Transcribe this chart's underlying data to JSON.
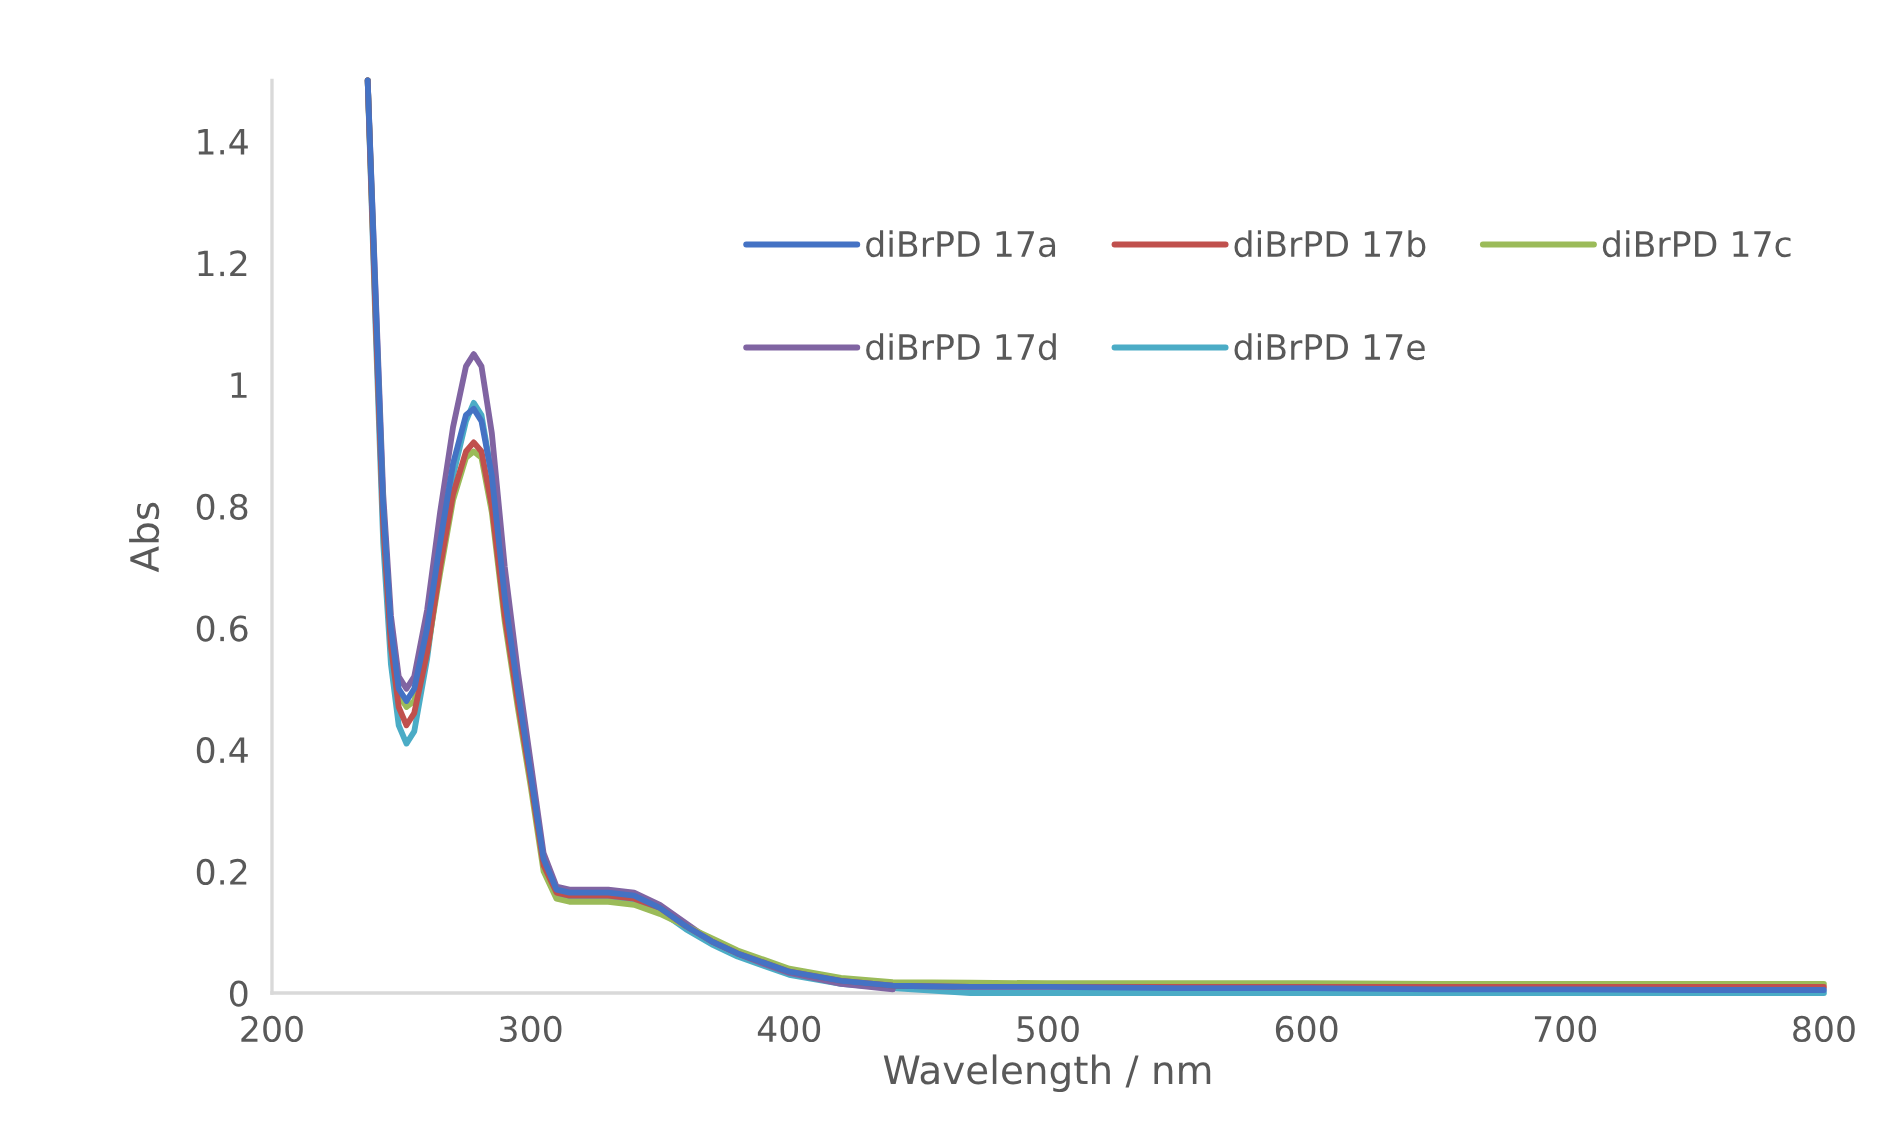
{
  "chart_data": {
    "type": "line",
    "xlabel": "Wavelength / nm",
    "ylabel": "Abs",
    "x": [
      237,
      240,
      243,
      246,
      249,
      252,
      255,
      260,
      265,
      270,
      275,
      278,
      281,
      285,
      290,
      295,
      300,
      305,
      310,
      315,
      320,
      330,
      340,
      350,
      360,
      370,
      380,
      390,
      400,
      420,
      440,
      470,
      500,
      550,
      600,
      650,
      700,
      750,
      800
    ],
    "series": [
      {
        "name": "diBrPD 17a",
        "color": "#4472c4",
        "values": [
          1.5,
          1.15,
          0.8,
          0.6,
          0.5,
          0.48,
          0.5,
          0.6,
          0.74,
          0.87,
          0.95,
          0.96,
          0.94,
          0.85,
          0.65,
          0.5,
          0.36,
          0.22,
          0.17,
          0.165,
          0.165,
          0.165,
          0.16,
          0.14,
          0.11,
          0.085,
          0.065,
          0.05,
          0.035,
          0.02,
          0.012,
          0.01,
          0.01,
          0.008,
          0.008,
          0.006,
          0.006,
          0.005,
          0.005
        ]
      },
      {
        "name": "diBrPD 17b",
        "color": "#c0504d",
        "values": [
          1.5,
          1.12,
          0.77,
          0.57,
          0.47,
          0.44,
          0.46,
          0.56,
          0.7,
          0.82,
          0.89,
          0.905,
          0.89,
          0.8,
          0.62,
          0.48,
          0.35,
          0.21,
          0.165,
          0.16,
          0.16,
          0.16,
          0.155,
          0.14,
          0.11,
          0.085,
          0.065,
          0.05,
          0.035,
          0.02,
          0.012,
          0.01,
          0.01,
          0.01,
          0.01,
          0.01,
          0.01,
          0.01,
          0.01
        ]
      },
      {
        "name": "diBrPD 17c",
        "color": "#9bbb59",
        "values": [
          1.5,
          1.13,
          0.79,
          0.59,
          0.49,
          0.47,
          0.48,
          0.56,
          0.69,
          0.81,
          0.88,
          0.89,
          0.88,
          0.79,
          0.61,
          0.47,
          0.34,
          0.2,
          0.155,
          0.15,
          0.15,
          0.15,
          0.145,
          0.13,
          0.11,
          0.09,
          0.07,
          0.055,
          0.04,
          0.025,
          0.018,
          0.017,
          0.016,
          0.016,
          0.016,
          0.015,
          0.015,
          0.015,
          0.015
        ]
      },
      {
        "name": "diBrPD 17d",
        "color": "#8064a2",
        "values": [
          1.5,
          1.16,
          0.82,
          0.62,
          0.52,
          0.5,
          0.52,
          0.63,
          0.79,
          0.93,
          1.03,
          1.05,
          1.03,
          0.92,
          0.7,
          0.53,
          0.38,
          0.23,
          0.175,
          0.17,
          0.17,
          0.17,
          0.165,
          0.145,
          0.115,
          0.085,
          0.065,
          0.048,
          0.033,
          0.015,
          0.006,
          null,
          null,
          null,
          null,
          null,
          null,
          null,
          null
        ]
      },
      {
        "name": "diBrPD 17e",
        "color": "#4bacc6",
        "values": [
          1.5,
          1.1,
          0.74,
          0.54,
          0.44,
          0.41,
          0.43,
          0.55,
          0.71,
          0.85,
          0.94,
          0.97,
          0.95,
          0.85,
          0.64,
          0.49,
          0.35,
          0.21,
          0.16,
          0.155,
          0.155,
          0.155,
          0.15,
          0.135,
          0.105,
          0.08,
          0.06,
          0.045,
          0.03,
          0.015,
          0.008,
          0,
          0,
          0,
          0,
          0,
          0,
          0,
          0
        ]
      }
    ],
    "xlim": [
      200,
      800
    ],
    "xticks": [
      200,
      300,
      400,
      500,
      600,
      700,
      800
    ],
    "ylim": [
      0,
      1.5
    ],
    "yticks": [
      0,
      {
        "value": 0.2,
        "label": "0.2"
      },
      {
        "value": 0.4,
        "label": "0.4"
      },
      {
        "value": 0.6,
        "label": "0.6"
      },
      {
        "value": 0.8,
        "label": "0.8"
      },
      1,
      {
        "value": 1.2,
        "label": "1.2"
      },
      {
        "value": 1.4,
        "label": "1.4"
      }
    ],
    "grid": false,
    "legend": "top right",
    "marker": "none",
    "line_style": "solid"
  }
}
